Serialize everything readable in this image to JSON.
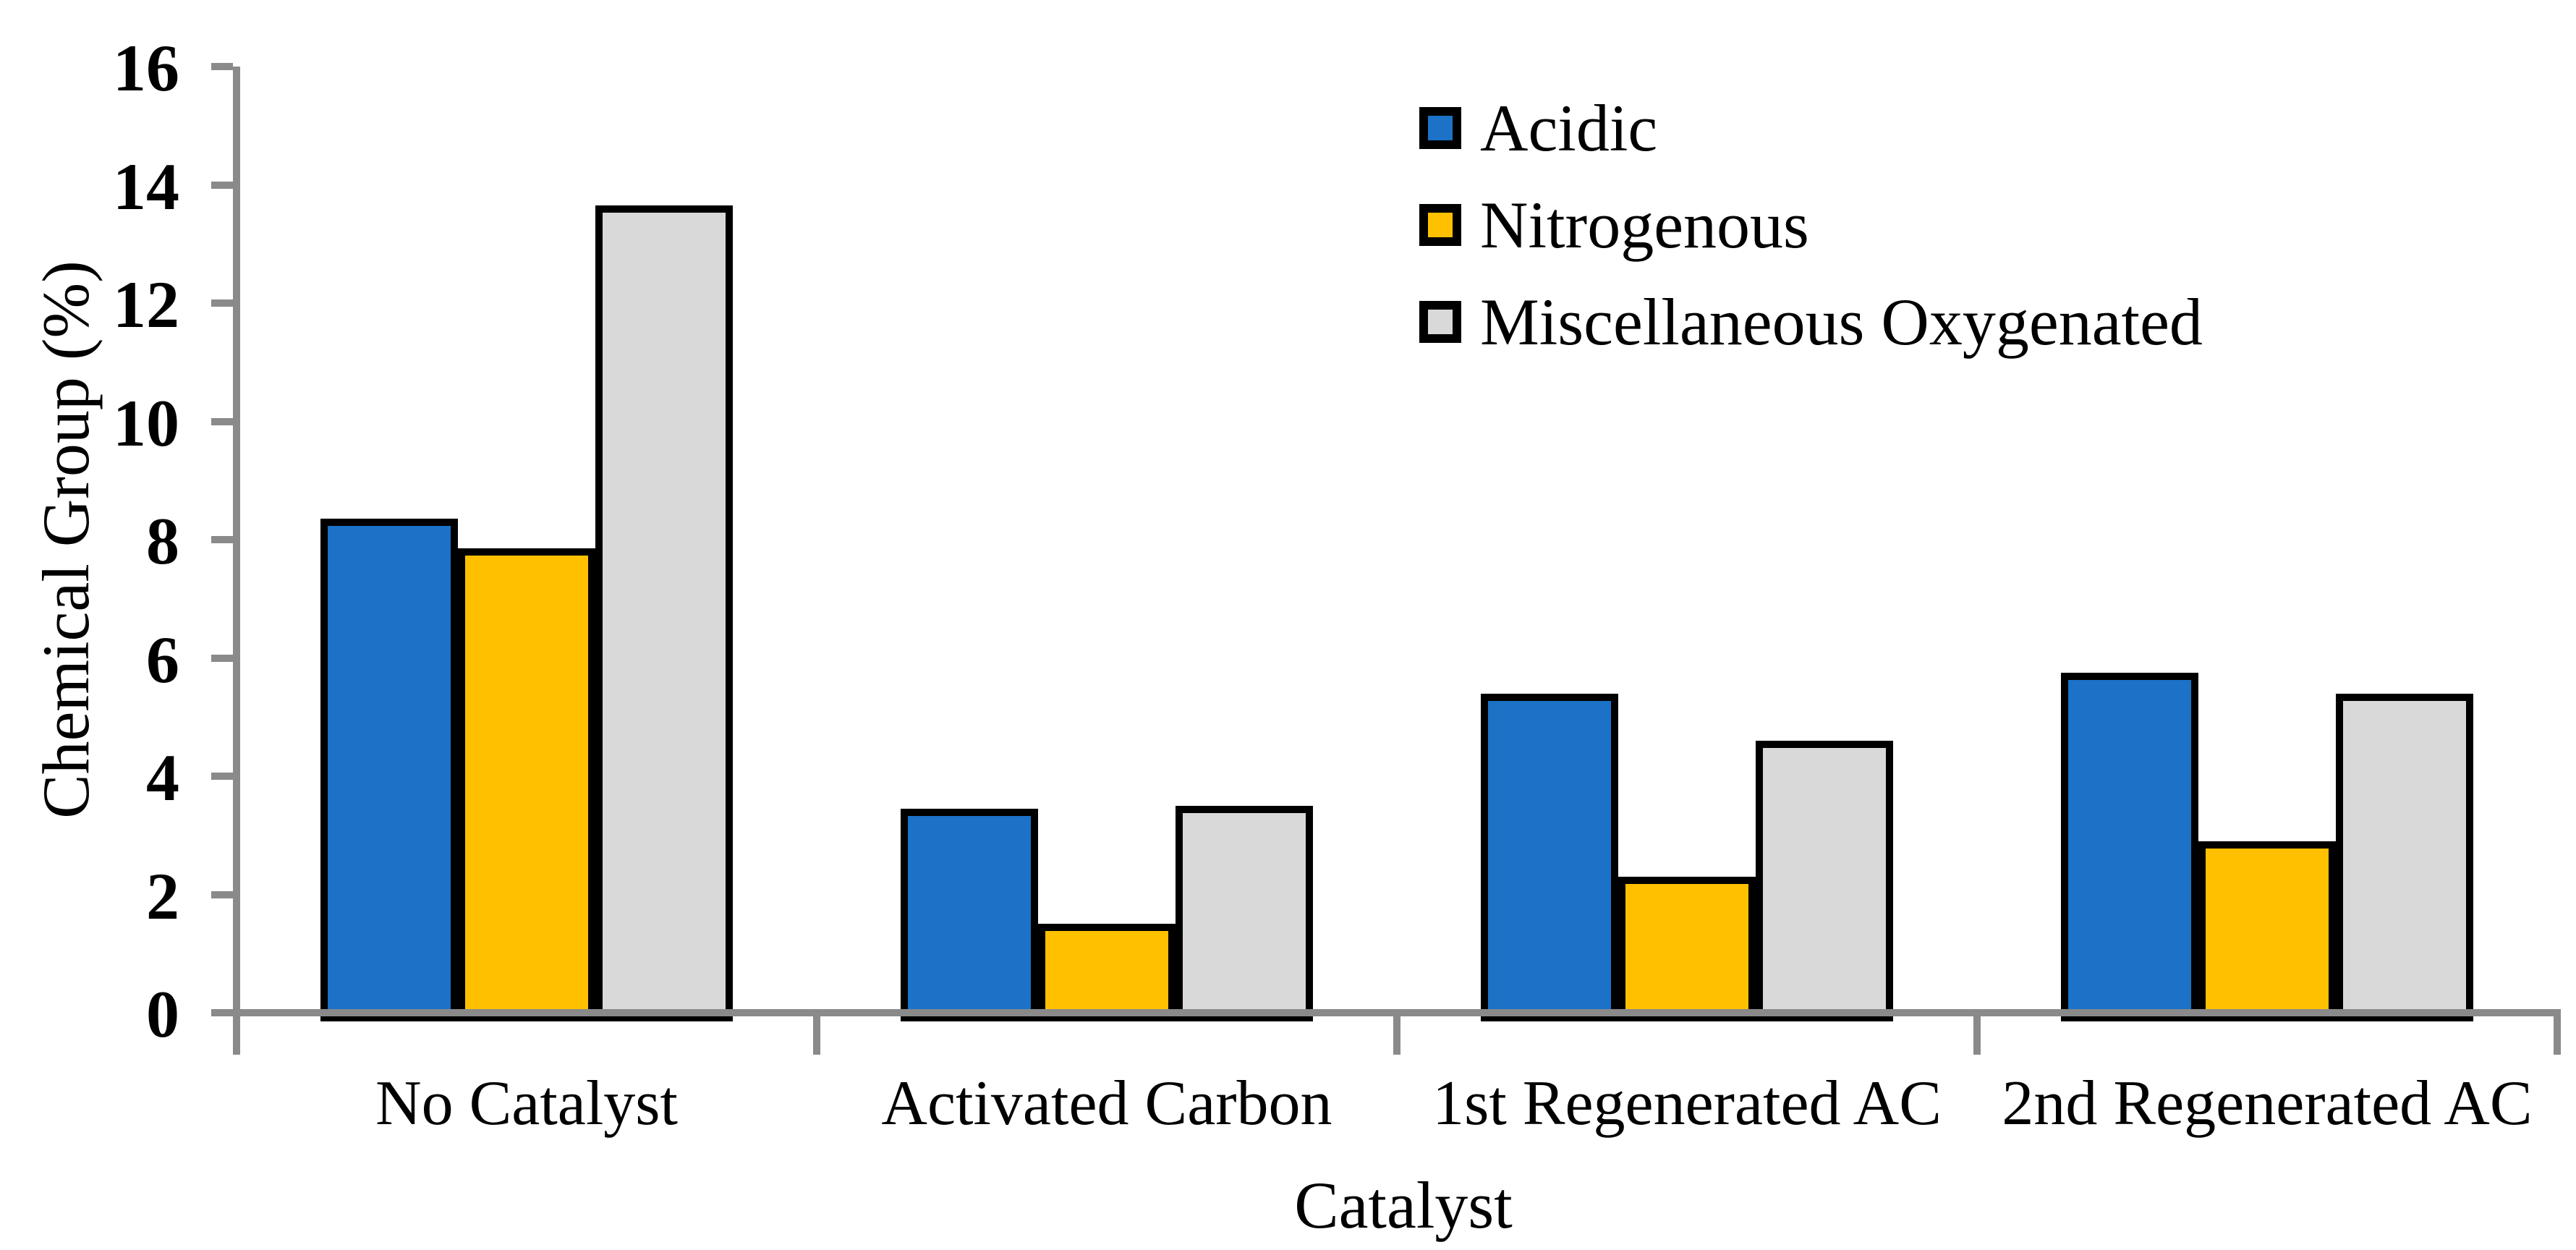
{
  "chart_data": {
    "type": "bar",
    "title": "",
    "xlabel": "Catalyst",
    "ylabel": "Chemical Group (%)",
    "categories": [
      "No Catalyst",
      "Activated Carbon",
      "1st Regenerated AC",
      "2nd Regenerated AC"
    ],
    "series": [
      {
        "name": "Acidic",
        "color": "#1B72C7",
        "values": [
          8.35,
          3.45,
          5.4,
          5.75
        ]
      },
      {
        "name": "Nitrogenous",
        "color": "#FFC000",
        "values": [
          7.85,
          1.5,
          2.3,
          2.9
        ]
      },
      {
        "name": "Miscellaneous Oxygenated",
        "color": "#D9D9D9",
        "values": [
          13.65,
          3.5,
          4.6,
          5.4
        ]
      }
    ],
    "ylim": [
      0,
      16
    ],
    "yticks": [
      0,
      2,
      4,
      6,
      8,
      10,
      12,
      14,
      16
    ],
    "grid": false,
    "legend_position": "top-right"
  },
  "colors": {
    "axis": "#8A8A8A",
    "bar_border": "#000000",
    "background": "#FFFFFF",
    "text": "#000000"
  }
}
